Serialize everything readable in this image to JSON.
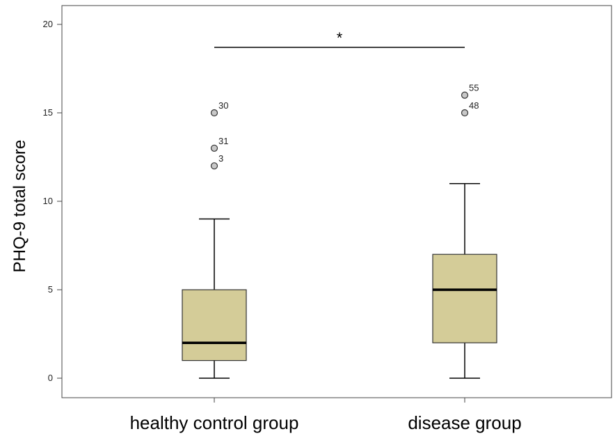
{
  "chart_data": {
    "type": "boxplot",
    "title": "",
    "xlabel": "",
    "ylabel": "PHQ-9 total score",
    "ylim": [
      -1,
      21
    ],
    "yticks": [
      0,
      5,
      10,
      15,
      20
    ],
    "grid": false,
    "colors": {
      "box_fill": "#d4cc98",
      "stroke": "#000000",
      "outlier_fill": "#c8c8c8"
    },
    "categories": [
      "healthy control group",
      "disease group"
    ],
    "boxes": [
      {
        "category": "healthy control group",
        "whisker_low": 0,
        "q1": 1,
        "median": 2,
        "q3": 5,
        "whisker_high": 9,
        "outliers": [
          {
            "label": "30",
            "value": 15
          },
          {
            "label": "31",
            "value": 13
          },
          {
            "label": "3",
            "value": 12
          }
        ]
      },
      {
        "category": "disease group",
        "whisker_low": 0,
        "q1": 2,
        "median": 5,
        "q3": 7,
        "whisker_high": 11,
        "outliers": [
          {
            "label": "55",
            "value": 16
          },
          {
            "label": "48",
            "value": 15
          }
        ]
      }
    ],
    "significance": {
      "label": "*",
      "between": [
        "healthy control group",
        "disease group"
      ],
      "value": 18.7
    }
  }
}
